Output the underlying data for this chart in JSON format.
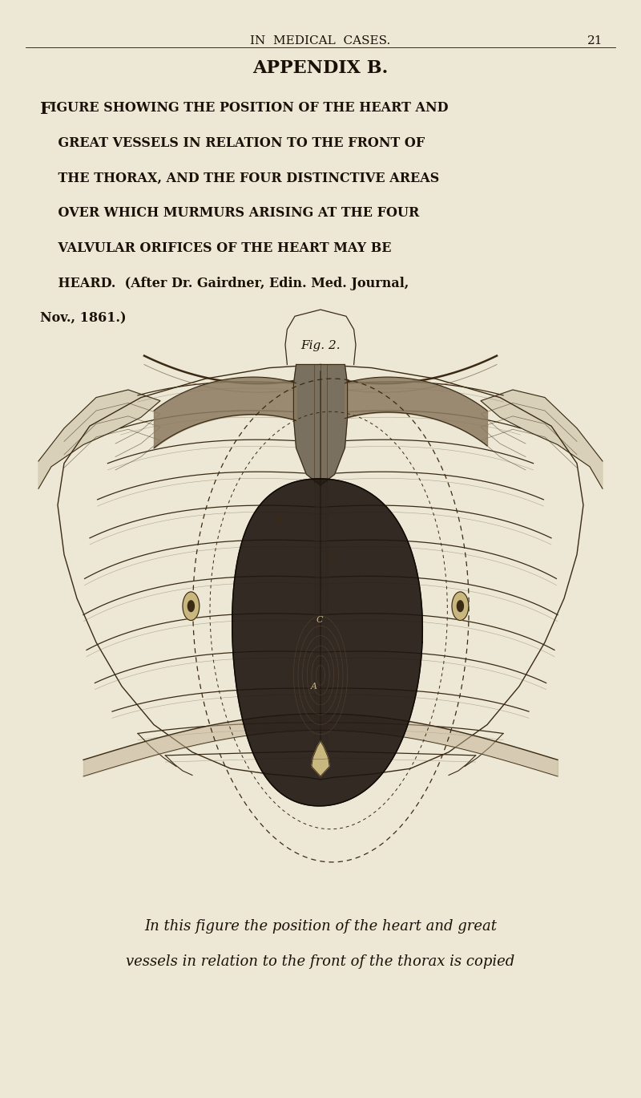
{
  "background_color": "#ede8d5",
  "page_number": "21",
  "header_text": "IN  MEDICAL  CASES.",
  "appendix_title": "APPENDIX B.",
  "body_line1_big": "F",
  "body_line1_rest": "IGURE SHOWING THE POSITION OF THE HEART AND",
  "body_lines_caps": [
    "    GREAT VESSELS IN RELATION TO THE FRONT OF",
    "    THE THORAX, AND THE FOUR DISTINCTIVE AREAS",
    "    OVER WHICH MURMURS ARISING AT THE FOUR",
    "    VALVULAR ORIFICES OF THE HEART MAY BE",
    "    HEARD.  (After Dr. Gairdner, Edin. Med. Journal,",
    "Nov., 1861.)"
  ],
  "fig_label": "Fig. 2.",
  "footer_text_lines": [
    "In this figure the position of the heart and great",
    "vessels in relation to the front of the thorax is copied"
  ],
  "text_color": "#1a1008",
  "header_fontsize": 11,
  "title_fontsize": 16,
  "body_fontsize_big": 15,
  "body_fontsize_small": 11.5,
  "fig_label_fontsize": 11,
  "footer_fontsize": 13
}
